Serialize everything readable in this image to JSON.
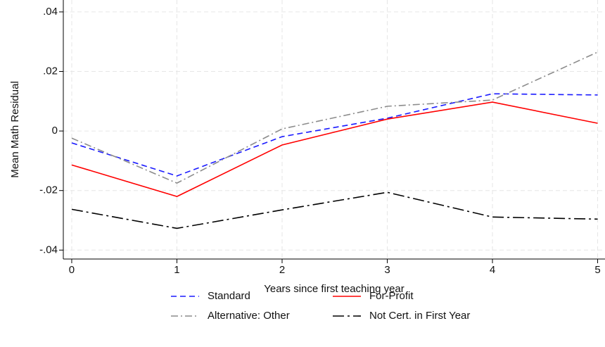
{
  "chart_data": {
    "type": "line",
    "x_label": "Years since first teaching year",
    "y_label": "Mean Math Residual",
    "x": [
      0,
      1,
      2,
      3,
      4,
      5
    ],
    "xlim": [
      -0.08,
      5.07
    ],
    "xticks": [
      0,
      1,
      2,
      3,
      4,
      5
    ],
    "ylim": [
      -0.043,
      0.044
    ],
    "yticks": [
      {
        "value": -0.04,
        "label": "-.04"
      },
      {
        "value": -0.02,
        "label": "-.02"
      },
      0,
      {
        "value": 0.02,
        "label": ".02"
      },
      {
        "value": 0.04,
        "label": ".04"
      }
    ],
    "grid": true,
    "legend_position": "bottom",
    "series": [
      {
        "name": "Standard",
        "color": "#1a1aff",
        "dash": "8,5",
        "values": [
          -0.004,
          -0.0151,
          -0.0019,
          0.0043,
          0.0125,
          0.0121
        ]
      },
      {
        "name": "For-Profit",
        "color": "#ff0000",
        "dash": "none",
        "values": [
          -0.0114,
          -0.022,
          -0.0047,
          0.004,
          0.0097,
          0.0026
        ]
      },
      {
        "name": "Alternative: Other",
        "color": "#8c8c8c",
        "dash": "10,4,2,4",
        "values": [
          -0.0024,
          -0.0175,
          0.0007,
          0.0083,
          0.0104,
          0.0265
        ]
      },
      {
        "name": "Not Cert. in First Year",
        "color": "#000000",
        "dash": "16,5,3,5",
        "values": [
          -0.0263,
          -0.0327,
          -0.0265,
          -0.0206,
          -0.0289,
          -0.0296
        ]
      }
    ]
  }
}
